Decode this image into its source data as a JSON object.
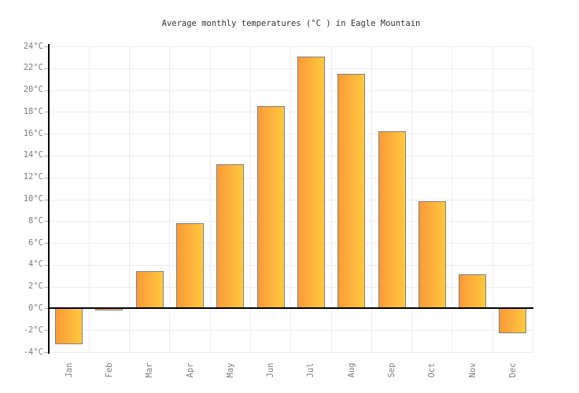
{
  "title": "Average monthly temperatures (°C ) in Eagle Mountain",
  "chart_data": {
    "type": "bar",
    "title": "Average monthly temperatures (°C ) in Eagle Mountain",
    "categories": [
      "Jan",
      "Feb",
      "Mar",
      "Apr",
      "May",
      "Jun",
      "Jul",
      "Aug",
      "Sep",
      "Oct",
      "Nov",
      "Dec"
    ],
    "values": [
      -3.3,
      -0.2,
      3.4,
      7.8,
      13.2,
      18.5,
      23.1,
      21.5,
      16.2,
      9.8,
      3.1,
      -2.3
    ],
    "xlabel": "",
    "ylabel": "",
    "ylim": [
      -4,
      24
    ],
    "ytick_step": 2,
    "ytick_suffix": "°C",
    "grid": true,
    "legend": "none"
  },
  "colors": {
    "background": "#ffffff",
    "grid": "#ededed",
    "axis": "#000000",
    "tick": "#b3b3b3",
    "label": "#7d7d7d",
    "title": "#333333",
    "bar_gradient_start": "#fb9a38",
    "bar_gradient_end": "#ffc93e",
    "bar_border": "#808080"
  }
}
